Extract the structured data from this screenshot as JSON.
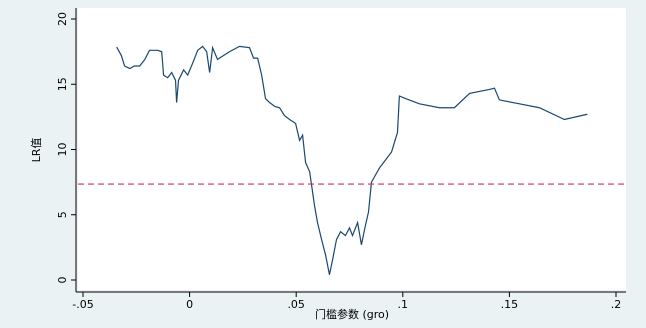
{
  "chart_data": {
    "type": "line",
    "x_label": "门槛参数 (gro)",
    "y_label": "LR值",
    "x": [
      -0.0342,
      -0.032,
      -0.0305,
      -0.028,
      -0.026,
      -0.0234,
      -0.021,
      -0.0188,
      -0.015,
      -0.0131,
      -0.0122,
      -0.0103,
      -0.0084,
      -0.0066,
      -0.0061,
      -0.0052,
      -0.0028,
      -0.0009,
      0.0014,
      0.0038,
      0.0061,
      0.008,
      0.0094,
      0.0108,
      0.0131,
      0.014,
      0.0188,
      0.0234,
      0.0281,
      0.03,
      0.0319,
      0.0338,
      0.0356,
      0.0375,
      0.04,
      0.0422,
      0.0445,
      0.0469,
      0.0497,
      0.0516,
      0.053,
      0.0544,
      0.0563,
      0.0586,
      0.06,
      0.0619,
      0.0638,
      0.0656,
      0.067,
      0.0689,
      0.0708,
      0.0731,
      0.075,
      0.0764,
      0.0788,
      0.0806,
      0.0825,
      0.0839,
      0.0853,
      0.0891,
      0.0947,
      0.0975,
      0.0984,
      0.1013,
      0.1078,
      0.1172,
      0.1242,
      0.1313,
      0.1406,
      0.143,
      0.1453,
      0.1547,
      0.1641,
      0.1758,
      0.1866
    ],
    "series": [
      {
        "color": "#1a476f",
        "values": [
          17.85,
          17.2,
          16.4,
          16.2,
          16.4,
          16.4,
          16.9,
          17.6,
          17.6,
          17.5,
          15.7,
          15.5,
          15.9,
          15.3,
          13.6,
          15.3,
          16.1,
          15.7,
          16.6,
          17.6,
          17.9,
          17.5,
          15.9,
          17.8,
          16.9,
          17.0,
          17.5,
          17.9,
          17.8,
          17.0,
          17.0,
          15.7,
          13.9,
          13.6,
          13.3,
          13.2,
          12.6,
          12.3,
          12.0,
          10.7,
          11.1,
          9.0,
          8.3,
          5.7,
          4.4,
          3.1,
          1.9,
          0.4,
          1.5,
          3.1,
          3.7,
          3.4,
          4.0,
          3.4,
          4.4,
          2.7,
          4.2,
          5.2,
          7.5,
          8.6,
          9.8,
          11.3,
          14.1,
          13.9,
          13.5,
          13.2,
          13.2,
          14.3,
          14.6,
          14.7,
          13.8,
          13.5,
          13.2,
          12.3,
          12.7
        ]
      }
    ],
    "reference_line": {
      "value": 7.35,
      "color": "#c8325a"
    },
    "xlim": [
      -0.05,
      0.2
    ],
    "xticks": [
      {
        "value": -0.05,
        "label": "-.05"
      },
      0,
      {
        "value": 0.05,
        "label": ".05"
      },
      {
        "value": 0.1,
        "label": ".1"
      },
      {
        "value": 0.15,
        "label": ".15"
      },
      {
        "value": 0.2,
        "label": ".2"
      }
    ],
    "ylim": [
      0,
      20
    ],
    "yticks": [
      0,
      5,
      10,
      15,
      20
    ]
  }
}
